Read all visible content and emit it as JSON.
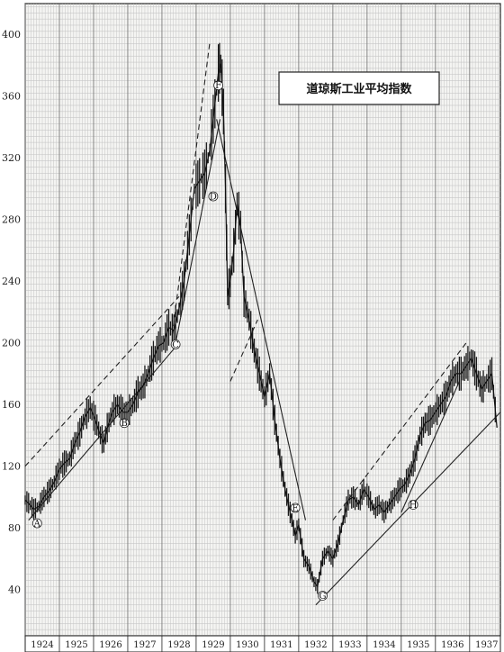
{
  "chart_data": {
    "type": "line",
    "title": "道琼斯工业平均指数",
    "xlabel": "",
    "ylabel": "",
    "xlim": [
      1924.0,
      1937.9
    ],
    "ylim": [
      10,
      420
    ],
    "yticks": [
      40,
      80,
      120,
      160,
      200,
      240,
      280,
      320,
      360,
      400
    ],
    "year_labels": [
      "1924",
      "1925",
      "1926",
      "1927",
      "1928",
      "1929",
      "1930",
      "1931",
      "1932",
      "1933",
      "1934",
      "1935",
      "1936",
      "1937"
    ],
    "grid": true,
    "series": [
      {
        "x": [
          1924.0,
          1924.1,
          1924.25,
          1924.4,
          1924.55,
          1924.7,
          1924.85,
          1925.0,
          1925.15,
          1925.3,
          1925.45,
          1925.6,
          1925.75,
          1925.9,
          1926.05,
          1926.2,
          1926.3,
          1926.4,
          1926.55,
          1926.7,
          1926.85,
          1927.0,
          1927.15,
          1927.3,
          1927.45,
          1927.6,
          1927.75,
          1927.9,
          1928.05,
          1928.2,
          1928.35,
          1928.5,
          1928.65,
          1928.8,
          1928.95,
          1929.1,
          1929.25,
          1929.4,
          1929.55,
          1929.65,
          1929.72,
          1929.8,
          1929.86,
          1929.92,
          1930.0,
          1930.1,
          1930.2,
          1930.3,
          1930.4,
          1930.55,
          1930.7,
          1930.85,
          1931.0,
          1931.15,
          1931.3,
          1931.45,
          1931.6,
          1931.75,
          1931.9,
          1932.0,
          1932.15,
          1932.3,
          1932.45,
          1932.55,
          1932.7,
          1932.85,
          1933.0,
          1933.15,
          1933.3,
          1933.45,
          1933.6,
          1933.75,
          1933.9,
          1934.05,
          1934.2,
          1934.35,
          1934.5,
          1934.65,
          1934.8,
          1934.95,
          1935.1,
          1935.25,
          1935.4,
          1935.55,
          1935.7,
          1935.85,
          1936.0,
          1936.15,
          1936.3,
          1936.45,
          1936.6,
          1936.75,
          1936.9,
          1937.05,
          1937.2,
          1937.35,
          1937.5,
          1937.65,
          1937.8
        ],
        "values": [
          98,
          96,
          92,
          94,
          100,
          104,
          110,
          118,
          122,
          125,
          135,
          142,
          152,
          158,
          150,
          140,
          135,
          145,
          155,
          160,
          155,
          155,
          160,
          168,
          172,
          180,
          190,
          198,
          200,
          210,
          208,
          222,
          240,
          270,
          300,
          305,
          310,
          325,
          355,
          375,
          381,
          350,
          300,
          230,
          240,
          260,
          290,
          275,
          230,
          215,
          195,
          180,
          165,
          180,
          150,
          125,
          105,
          90,
          75,
          82,
          60,
          55,
          45,
          42,
          60,
          65,
          60,
          70,
          85,
          98,
          100,
          95,
          105,
          100,
          92,
          95,
          90,
          95,
          100,
          105,
          108,
          115,
          125,
          140,
          148,
          150,
          155,
          160,
          165,
          175,
          180,
          180,
          185,
          190,
          180,
          170,
          175,
          180,
          145
        ]
      }
    ],
    "trend_lines": [
      {
        "x": [
          1924.1,
          1928.5
        ],
        "values": [
          85,
          200
        ]
      },
      {
        "x": [
          1924.0,
          1928.5
        ],
        "values": [
          120,
          230
        ]
      },
      {
        "x": [
          1928.3,
          1929.4
        ],
        "values": [
          205,
          395
        ]
      },
      {
        "x": [
          1928.4,
          1929.7
        ],
        "values": [
          200,
          345
        ]
      },
      {
        "x": [
          1929.6,
          1932.2
        ],
        "values": [
          345,
          85
        ]
      },
      {
        "x": [
          1930.0,
          1930.8
        ],
        "values": [
          175,
          215
        ]
      },
      {
        "x": [
          1932.5,
          1937.9
        ],
        "values": [
          30,
          155
        ]
      },
      {
        "x": [
          1933.0,
          1936.9
        ],
        "values": [
          85,
          200
        ]
      },
      {
        "x": [
          1935.0,
          1936.7
        ],
        "values": [
          90,
          175
        ]
      }
    ],
    "annotations": [
      {
        "label": "A",
        "x": 1924.35,
        "y": 83
      },
      {
        "label": "B",
        "x": 1926.9,
        "y": 148
      },
      {
        "label": "C",
        "x": 1928.4,
        "y": 199
      },
      {
        "label": "D",
        "x": 1929.5,
        "y": 295
      },
      {
        "label": "E",
        "x": 1931.9,
        "y": 93
      },
      {
        "label": "F",
        "x": 1929.65,
        "y": 367
      },
      {
        "label": "G",
        "x": 1932.7,
        "y": 36
      },
      {
        "label": "H",
        "x": 1935.35,
        "y": 95
      }
    ]
  }
}
